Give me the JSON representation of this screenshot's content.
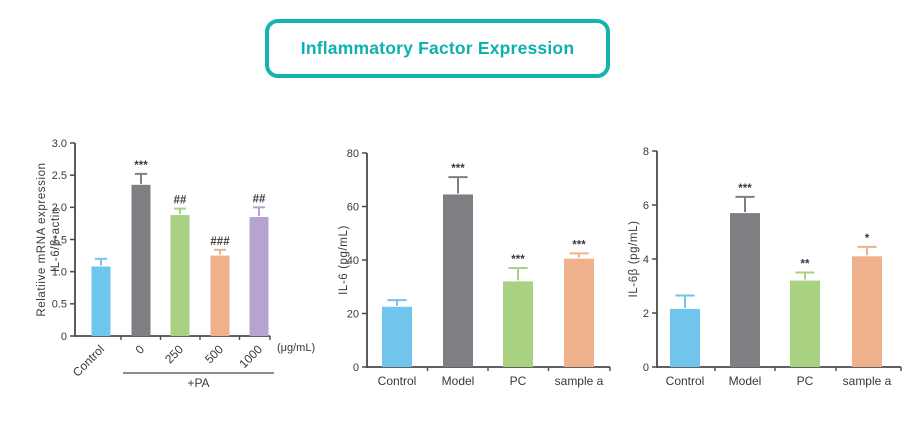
{
  "header": {
    "title": "Inflammatory Factor Expression"
  },
  "colors": {
    "accent": "#14b3ad",
    "accent_text": "#0fb0ae",
    "blue": "#6fc5ec",
    "gray": "#7e7f83",
    "green": "#a8d182",
    "orange": "#efb18b",
    "purple": "#b7a3d0",
    "axis": "#4a4a4d",
    "text": "#39393b"
  },
  "chart_data": [
    {
      "type": "bar",
      "title": "",
      "ylabel_lines": [
        "Relatiive mRNA expression",
        "IL-6/β-actin"
      ],
      "categories": [
        "Control",
        "0",
        "250",
        "500",
        "1000"
      ],
      "values": [
        1.08,
        2.35,
        1.88,
        1.25,
        1.85
      ],
      "errors": [
        0.12,
        0.17,
        0.1,
        0.09,
        0.15
      ],
      "annotations": [
        "",
        "***",
        "##",
        "###",
        "##"
      ],
      "bar_colors": [
        "blue",
        "gray",
        "green",
        "orange",
        "purple"
      ],
      "ylim": [
        0,
        3.0
      ],
      "yticks": [
        "0",
        "0.5",
        "1.0",
        "1.5",
        "2.0",
        "2.5",
        "3.0"
      ],
      "x_unit_label": "(μg/mL)",
      "group_label": "+PA",
      "group_span": [
        1,
        4
      ],
      "xtick_rotation": 45,
      "grid": false,
      "legend": null
    },
    {
      "type": "bar",
      "title": "",
      "ylabel_lines": [
        "IL-6 (pg/mL)"
      ],
      "categories": [
        "Control",
        "Model",
        "PC",
        "sample a"
      ],
      "values": [
        22.5,
        64.5,
        32,
        40.5
      ],
      "errors": [
        2.5,
        6.5,
        5,
        2
      ],
      "annotations": [
        "",
        "***",
        "***",
        "***"
      ],
      "bar_colors": [
        "blue",
        "gray",
        "green",
        "orange"
      ],
      "ylim": [
        0,
        80
      ],
      "yticks": [
        "0",
        "20",
        "40",
        "60",
        "80"
      ],
      "xtick_rotation": 0,
      "grid": false,
      "legend": null
    },
    {
      "type": "bar",
      "title": "",
      "ylabel_lines": [
        "IL-6β (pg/mL)"
      ],
      "categories": [
        "Control",
        "Model",
        "PC",
        "sample a"
      ],
      "values": [
        2.15,
        5.7,
        3.2,
        4.1
      ],
      "errors": [
        0.5,
        0.6,
        0.3,
        0.35
      ],
      "annotations": [
        "",
        "***",
        "**",
        "*"
      ],
      "bar_colors": [
        "blue",
        "gray",
        "green",
        "orange"
      ],
      "ylim": [
        0,
        8
      ],
      "yticks": [
        "0",
        "2",
        "4",
        "6",
        "8"
      ],
      "xtick_rotation": 0,
      "grid": false,
      "legend": null
    }
  ]
}
